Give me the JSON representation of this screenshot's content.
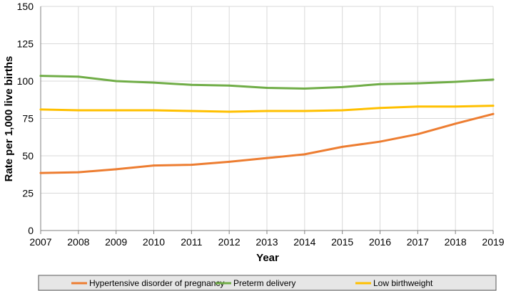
{
  "chart_data": {
    "type": "line",
    "title": "",
    "xlabel": "Year",
    "ylabel": "Rate per 1,000 live births",
    "x": [
      2007,
      2008,
      2009,
      2010,
      2011,
      2012,
      2013,
      2014,
      2015,
      2016,
      2017,
      2018,
      2019
    ],
    "ylim": [
      0,
      150
    ],
    "yticks": [
      0,
      25,
      50,
      75,
      100,
      125,
      150
    ],
    "grid": true,
    "legend_position": "bottom",
    "series": [
      {
        "name": "Hypertensive disorder of pregnancy",
        "color": "#ED7D31",
        "values": [
          38.5,
          39,
          41,
          43.5,
          44,
          46,
          48.5,
          51,
          56,
          59.5,
          64.5,
          71.5,
          78
        ]
      },
      {
        "name": "Preterm delivery",
        "color": "#70AD47",
        "values": [
          103.5,
          103,
          100,
          99,
          97.5,
          97,
          95.5,
          95,
          96,
          98,
          98.5,
          99.5,
          101
        ]
      },
      {
        "name": "Low birthweight",
        "color": "#FFC000",
        "values": [
          81,
          80.5,
          80.5,
          80.5,
          80,
          79.5,
          80,
          80,
          80.5,
          82,
          83,
          83,
          83.5
        ]
      }
    ]
  }
}
